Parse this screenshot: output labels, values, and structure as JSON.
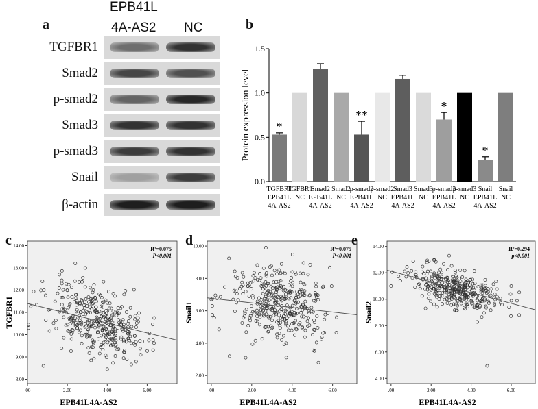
{
  "panel_a": {
    "letter": "a",
    "lane_headers": {
      "lane1_line1": "EPB41L",
      "lane1_line2": "4A-AS2",
      "lane2": "NC"
    },
    "blots": [
      {
        "label": "TGFBR1",
        "lane1_intensity": 0.55,
        "lane2_intensity": 0.85
      },
      {
        "label": "Smad2",
        "lane1_intensity": 0.75,
        "lane2_intensity": 0.7
      },
      {
        "label": "p-smad2",
        "lane1_intensity": 0.6,
        "lane2_intensity": 0.9
      },
      {
        "label": "Smad3",
        "lane1_intensity": 0.85,
        "lane2_intensity": 0.85
      },
      {
        "label": "p-smad3",
        "lane1_intensity": 0.8,
        "lane2_intensity": 0.85
      },
      {
        "label": "Snail",
        "lane1_intensity": 0.3,
        "lane2_intensity": 0.8
      },
      {
        "label": "β-actin",
        "lane1_intensity": 0.95,
        "lane2_intensity": 0.95
      }
    ]
  },
  "chart_data": [
    {
      "type": "bar",
      "panel": "b",
      "ylabel": "Protein expression level",
      "ylim": [
        0,
        1.5
      ],
      "yticks": [
        "0.0",
        "0.5",
        "1.0",
        "1.5"
      ],
      "categories": [
        [
          "TGFBR1",
          "EPB41L",
          "4A-AS2"
        ],
        [
          "TGFBR1",
          "NC"
        ],
        [
          "Smad2",
          "EPB41L",
          "4A-AS2"
        ],
        [
          "Smad2",
          "NC"
        ],
        [
          "p-smad2",
          "EPB41L",
          "4A-AS2"
        ],
        [
          "p-smad2",
          "NC"
        ],
        [
          "Smad3",
          "EPB41L",
          "4A-AS2"
        ],
        [
          "Smad3",
          "NC"
        ],
        [
          "p-smad3",
          "EPB41L",
          "4A-AS2"
        ],
        [
          "p-smad3",
          "NC"
        ],
        [
          "Snail",
          "EPB41L",
          "4A-AS2"
        ],
        [
          "Snail",
          "NC"
        ]
      ],
      "values": [
        0.53,
        1.0,
        1.27,
        1.0,
        0.53,
        1.0,
        1.16,
        1.0,
        0.7,
        1.0,
        0.24,
        1.0
      ],
      "errors": [
        0.02,
        0,
        0.06,
        0,
        0.15,
        0,
        0.04,
        0,
        0.08,
        0,
        0.04,
        0
      ],
      "significance": [
        "*",
        "",
        "",
        "",
        "**",
        "",
        "",
        "",
        "*",
        "",
        "*",
        ""
      ],
      "colors": [
        "#7a7a7a",
        "#d8d8d8",
        "#606060",
        "#a9a9a9",
        "#555555",
        "#e8e8e8",
        "#5e5e5e",
        "#dadada",
        "#9e9e9e",
        "#000000",
        "#8a8a8a",
        "#7e7e7e"
      ]
    },
    {
      "type": "scatter",
      "panel": "c",
      "xlabel": "EPB41L4A-AS2",
      "ylabel": "TGFBR1",
      "xlim": [
        0,
        7.5
      ],
      "ylim": [
        7.8,
        14.2
      ],
      "xticks": [
        ".00",
        "2.00",
        "4.00",
        "6.00"
      ],
      "yticks": [
        "8.00",
        "9.00",
        "10.00",
        "11.00",
        "12.00",
        "13.00",
        "14.00"
      ],
      "annotation_r2": "R²=0.075",
      "annotation_p": "P<0.001",
      "fit_line": {
        "x0": 0,
        "y0": 11.4,
        "x1": 7.5,
        "y1": 9.75
      },
      "cloud": {
        "n": 380,
        "x_mean": 3.5,
        "x_sd": 1.1,
        "y_mean": 10.6,
        "y_sd": 0.7,
        "slope": -0.22
      },
      "outliers": [
        [
          0.05,
          10.45
        ],
        [
          0.05,
          10.3
        ],
        [
          0.8,
          8.6
        ],
        [
          4.0,
          8.45
        ],
        [
          2.4,
          13.2
        ],
        [
          2.9,
          13.0
        ],
        [
          0.75,
          12.4
        ],
        [
          6.3,
          9.3
        ]
      ]
    },
    {
      "type": "scatter",
      "panel": "d",
      "xlabel": "EPB41L4A-AS2",
      "ylabel": "Snail1",
      "xlim": [
        -0.2,
        7.2
      ],
      "ylim": [
        1.5,
        10.3
      ],
      "xticks": [
        ".00",
        "2.00",
        "4.00",
        "6.00"
      ],
      "yticks": [
        "2.00",
        "4.00",
        "6.00",
        "8.00",
        "10.00"
      ],
      "annotation_r2": "R²=0.075",
      "annotation_p": "P<0.001",
      "fit_line": {
        "x0": -0.2,
        "y0": 6.8,
        "x1": 7.2,
        "y1": 5.75
      },
      "cloud": {
        "n": 380,
        "x_mean": 3.3,
        "x_sd": 1.2,
        "y_mean": 6.5,
        "y_sd": 1.1,
        "slope": -0.15
      },
      "outliers": [
        [
          2.7,
          9.9
        ],
        [
          0.9,
          3.2
        ],
        [
          5.3,
          2.8
        ],
        [
          0.0,
          6.7
        ],
        [
          1.7,
          3.1
        ],
        [
          6.2,
          5.6
        ]
      ]
    },
    {
      "type": "scatter",
      "panel": "e",
      "xlabel": "EPB41L4A-AS2",
      "ylabel": "Snail2",
      "xlim": [
        -0.2,
        7.2
      ],
      "ylim": [
        3.6,
        14.4
      ],
      "xticks": [
        ".00",
        "2.00",
        "4.00",
        "6.00"
      ],
      "yticks": [
        "4.00",
        "6.00",
        "8.00",
        "10.00",
        "12.00",
        "14.00"
      ],
      "annotation_r2": "R²=0.294",
      "annotation_p": "p<0.001",
      "fit_line": {
        "x0": -0.2,
        "y0": 12.2,
        "x1": 7.2,
        "y1": 9.2
      },
      "cloud": {
        "n": 380,
        "x_mean": 3.3,
        "x_sd": 1.1,
        "y_mean": 10.8,
        "y_sd": 0.75,
        "slope": -0.4
      },
      "outliers": [
        [
          4.8,
          4.95
        ],
        [
          2.9,
          13.3
        ],
        [
          0.0,
          11.0
        ],
        [
          6.0,
          11.0
        ],
        [
          6.4,
          8.8
        ]
      ]
    }
  ]
}
